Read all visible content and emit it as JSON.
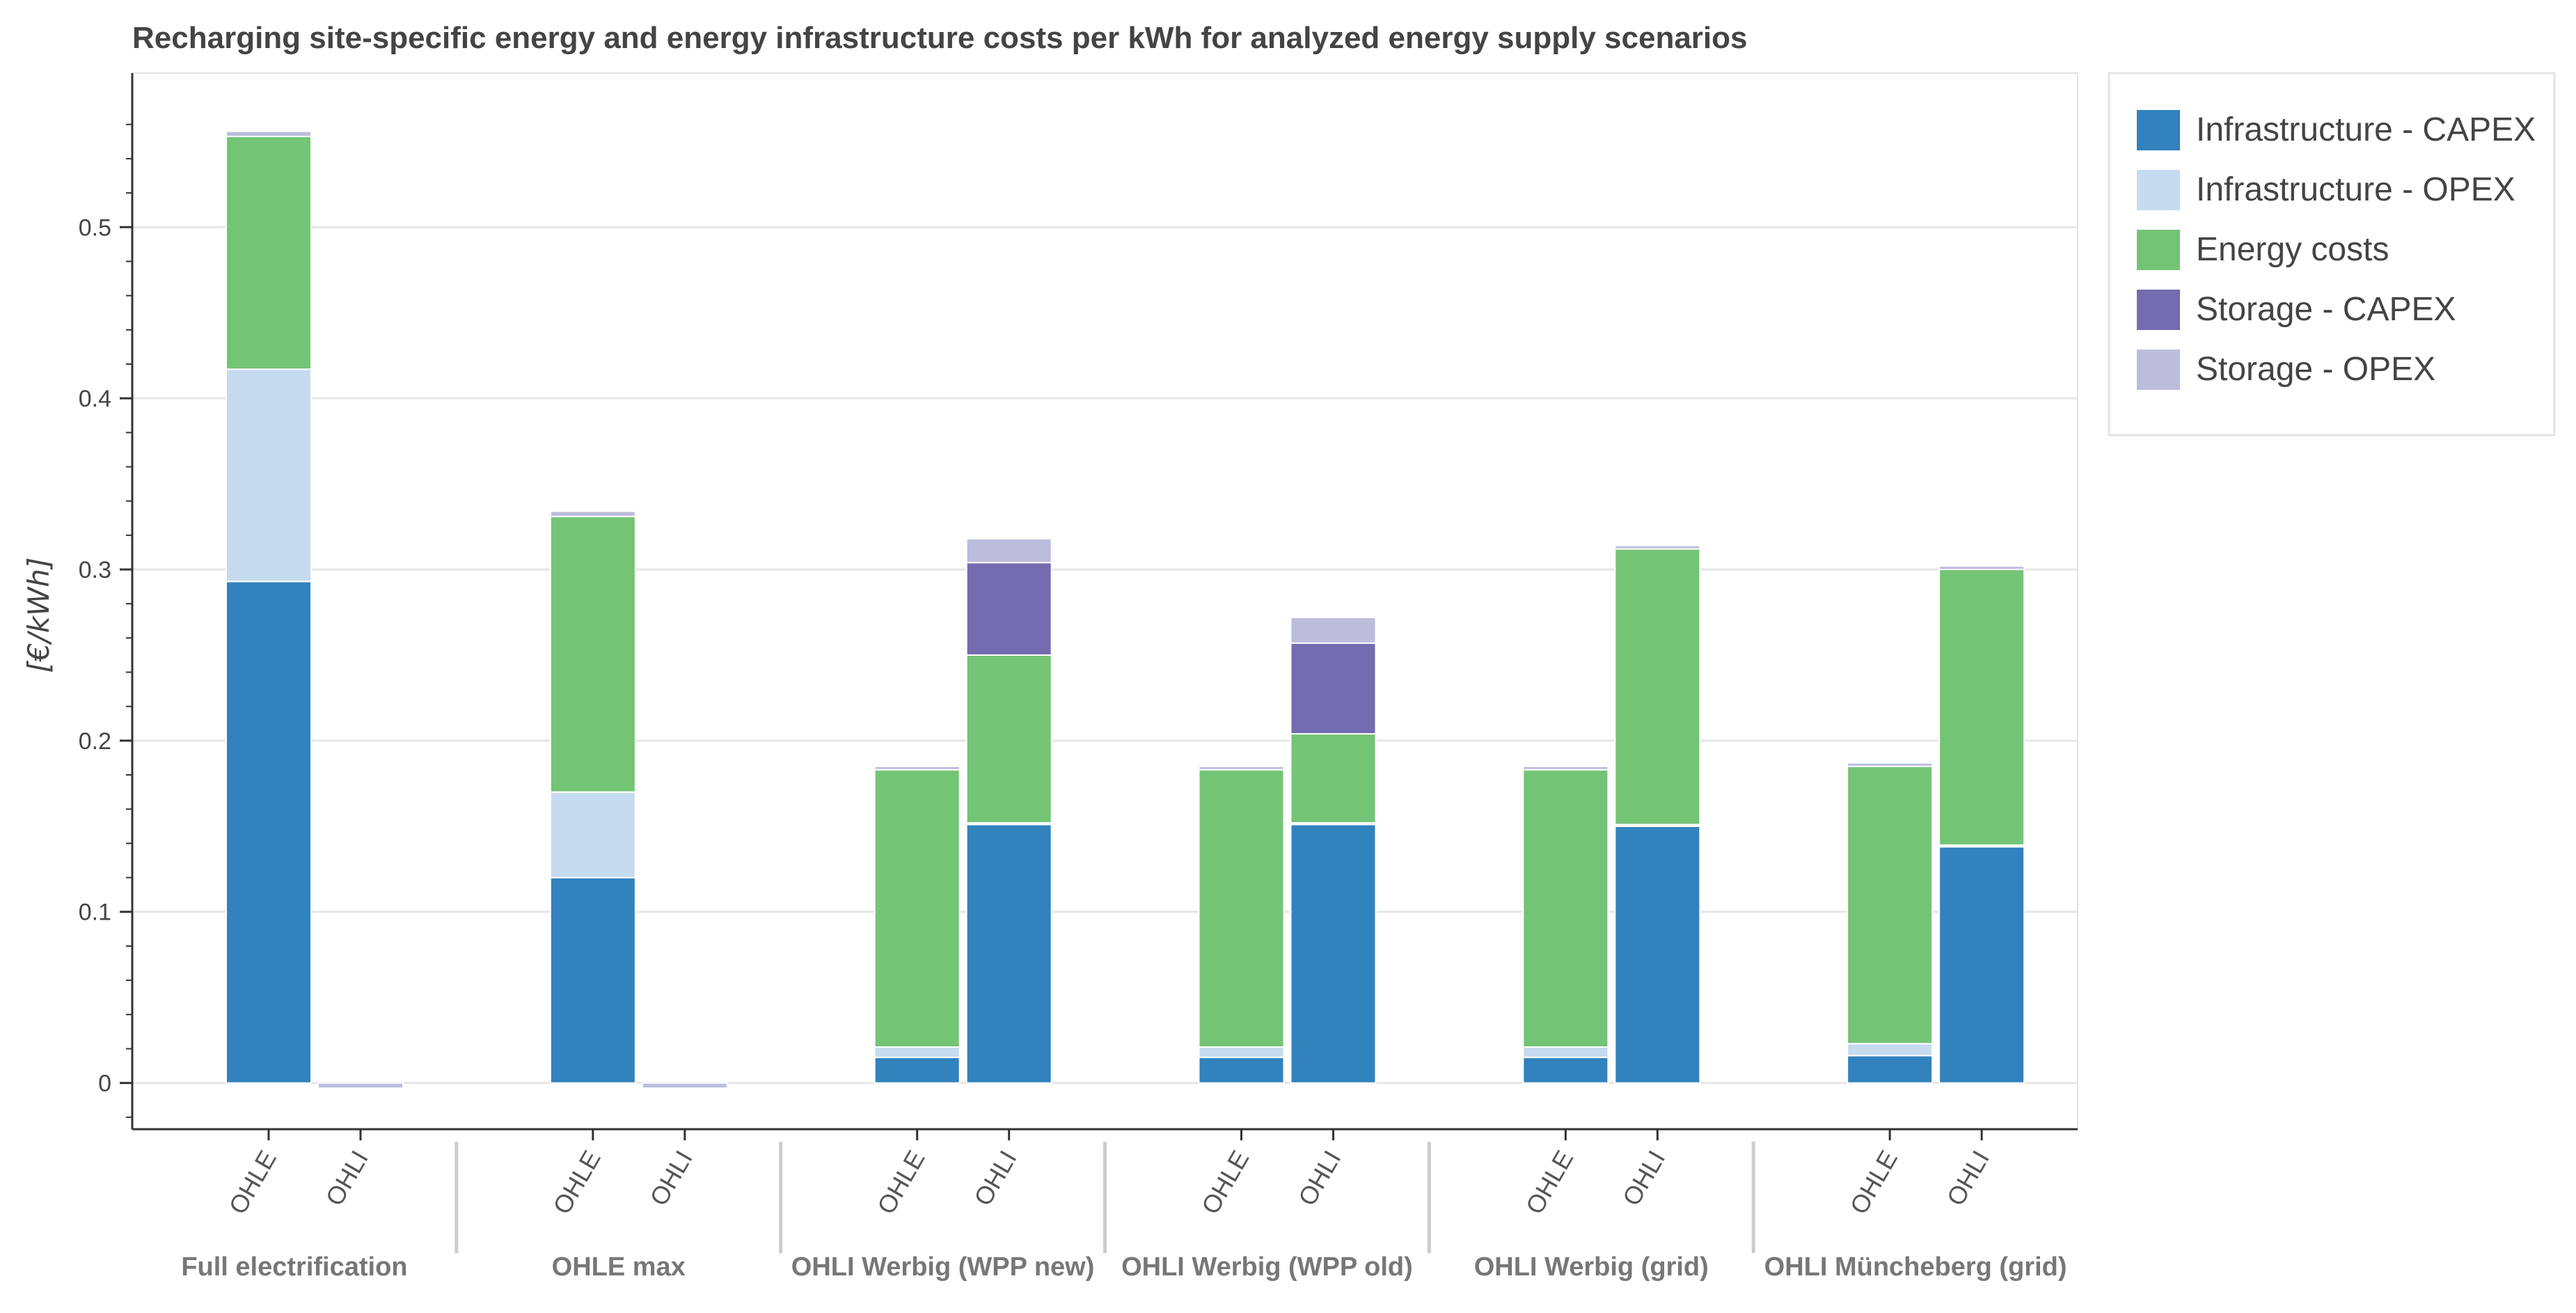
{
  "chart_data": {
    "type": "bar",
    "stacked": true,
    "title": "Recharging site-specific energy and energy infrastructure costs per kWh for analyzed energy supply scenarios",
    "ylabel": "[€/kWh]",
    "xlabel": "",
    "ylim": [
      -0.027,
      0.59
    ],
    "yticks": [
      0,
      0.1,
      0.2,
      0.3,
      0.4,
      0.5
    ],
    "ytick_labels": [
      "0",
      "0.1",
      "0.2",
      "0.3",
      "0.4",
      "0.5"
    ],
    "grid": true,
    "legend_position": "top-right",
    "groups": [
      {
        "label": "Full electrification",
        "subcategories": [
          "OHLE",
          "OHLI"
        ]
      },
      {
        "label": "OHLE max",
        "subcategories": [
          "OHLE",
          "OHLI"
        ]
      },
      {
        "label": "OHLI Werbig (WPP new)",
        "subcategories": [
          "OHLE",
          "OHLI"
        ]
      },
      {
        "label": "OHLI Werbig (WPP old)",
        "subcategories": [
          "OHLE",
          "OHLI"
        ]
      },
      {
        "label": "OHLI Werbig (grid)",
        "subcategories": [
          "OHLE",
          "OHLI"
        ]
      },
      {
        "label": "OHLI Müncheberg (grid)",
        "subcategories": [
          "OHLE",
          "OHLI"
        ]
      }
    ],
    "series": [
      {
        "name": "Infrastructure - CAPEX",
        "color": "#3182bd",
        "values": [
          0.293,
          0,
          0.12,
          0,
          0.015,
          0.151,
          0.015,
          0.151,
          0.015,
          0.15,
          0.016,
          0.138
        ]
      },
      {
        "name": "Infrastructure - OPEX",
        "color": "#c6dbef",
        "values": [
          0.124,
          0,
          0.05,
          0,
          0.006,
          0.001,
          0.006,
          0.001,
          0.006,
          0.001,
          0.007,
          0.001
        ]
      },
      {
        "name": "Energy costs",
        "color": "#74c476",
        "values": [
          0.136,
          0,
          0.161,
          0,
          0.162,
          0.098,
          0.162,
          0.052,
          0.162,
          0.161,
          0.162,
          0.161
        ]
      },
      {
        "name": "Storage - CAPEX",
        "color": "#756bb1",
        "values": [
          0,
          0,
          0,
          0,
          0,
          0.054,
          0,
          0.053,
          0,
          0,
          0,
          0
        ]
      },
      {
        "name": "Storage - OPEX",
        "color": "#bcbddc",
        "values": [
          0.003,
          -0.003,
          0.003,
          -0.003,
          0.002,
          0.014,
          0.002,
          0.015,
          0.002,
          0.002,
          0.002,
          0.002
        ]
      }
    ]
  }
}
